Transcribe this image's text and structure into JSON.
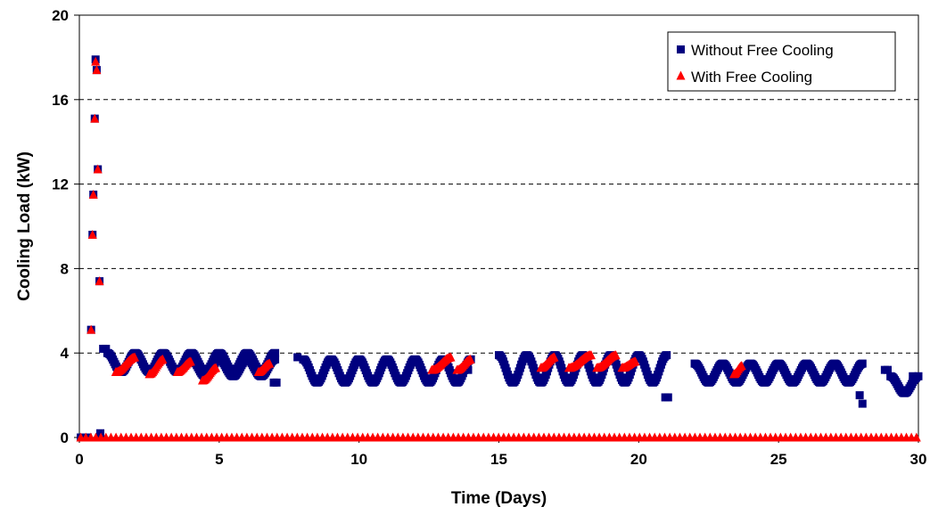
{
  "chart_data": {
    "type": "scatter",
    "xlabel": "Time (Days)",
    "ylabel": "Cooling Load (kW)",
    "xlim": [
      0,
      30
    ],
    "ylim": [
      0,
      20
    ],
    "xticks": [
      0,
      5,
      10,
      15,
      20,
      25,
      30
    ],
    "yticks": [
      0,
      4,
      8,
      12,
      16,
      20
    ],
    "grid": "horizontal dashed",
    "legend_position": "top-right",
    "colors": {
      "without": "#00007f",
      "with": "#ff0000"
    },
    "series": [
      {
        "name": "Without Free Cooling",
        "marker": "square",
        "description_points": [
          [
            0.05,
            0
          ],
          [
            0.15,
            0
          ],
          [
            0.3,
            0
          ],
          [
            0.42,
            5.1
          ],
          [
            0.47,
            9.6
          ],
          [
            0.5,
            11.5
          ],
          [
            0.55,
            15.1
          ],
          [
            0.58,
            17.9
          ],
          [
            0.62,
            17.4
          ],
          [
            0.66,
            12.7
          ],
          [
            0.72,
            7.4
          ],
          [
            0.75,
            0.2
          ],
          [
            0.85,
            4.2
          ],
          [
            0.95,
            4.2
          ],
          [
            6.95,
            2.6
          ],
          [
            7.05,
            2.6
          ],
          [
            7.8,
            3.8
          ],
          [
            13.9,
            3.2
          ],
          [
            20.95,
            1.9
          ],
          [
            21.05,
            1.9
          ],
          [
            27.9,
            2.0
          ],
          [
            28.0,
            1.6
          ],
          [
            28.8,
            3.2
          ],
          [
            28.9,
            3.2
          ],
          [
            29.8,
            2.9
          ],
          [
            29.9,
            2.8
          ]
        ],
        "wave_segments": [
          {
            "x": [
              1.0,
              7.0
            ],
            "min": 3.1,
            "max": 4.0
          },
          {
            "x": [
              4.0,
              7.0
            ],
            "min": 2.9,
            "max": 3.7
          },
          {
            "x": [
              8.0,
              14.0
            ],
            "min": 2.6,
            "max": 3.7
          },
          {
            "x": [
              15.0,
              21.0
            ],
            "min": 2.6,
            "max": 3.9
          },
          {
            "x": [
              22.0,
              28.0
            ],
            "min": 2.6,
            "max": 3.5
          },
          {
            "x": [
              29.0,
              30.0
            ],
            "min": 2.1,
            "max": 2.9
          }
        ]
      },
      {
        "name": "With Free Cooling",
        "marker": "triangle",
        "spike_points": [
          [
            0.42,
            5.1
          ],
          [
            0.47,
            9.6
          ],
          [
            0.5,
            11.5
          ],
          [
            0.55,
            15.1
          ],
          [
            0.58,
            17.8
          ],
          [
            0.62,
            17.4
          ],
          [
            0.66,
            12.7
          ],
          [
            0.72,
            7.4
          ]
        ],
        "baseline": 0,
        "partial_waves": [
          {
            "x": [
              1.3,
              2.0
            ],
            "min": 3.1,
            "max": 3.8
          },
          {
            "x": [
              2.5,
              3.0
            ],
            "min": 3.0,
            "max": 3.7
          },
          {
            "x": [
              3.5,
              4.0
            ],
            "min": 3.1,
            "max": 3.6
          },
          {
            "x": [
              4.4,
              4.9
            ],
            "min": 2.7,
            "max": 3.3
          },
          {
            "x": [
              6.4,
              6.8
            ],
            "min": 3.1,
            "max": 3.5
          },
          {
            "x": [
              12.6,
              13.3
            ],
            "min": 3.2,
            "max": 3.8
          },
          {
            "x": [
              13.5,
              14.0
            ],
            "min": 3.2,
            "max": 3.7
          },
          {
            "x": [
              16.5,
              17.0
            ],
            "min": 3.3,
            "max": 3.8
          },
          {
            "x": [
              17.5,
              18.3
            ],
            "min": 3.3,
            "max": 3.9
          },
          {
            "x": [
              18.5,
              19.2
            ],
            "min": 3.3,
            "max": 3.9
          },
          {
            "x": [
              19.4,
              19.9
            ],
            "min": 3.3,
            "max": 3.6
          },
          {
            "x": [
              23.4,
              23.7
            ],
            "min": 3.0,
            "max": 3.4
          }
        ]
      }
    ]
  }
}
